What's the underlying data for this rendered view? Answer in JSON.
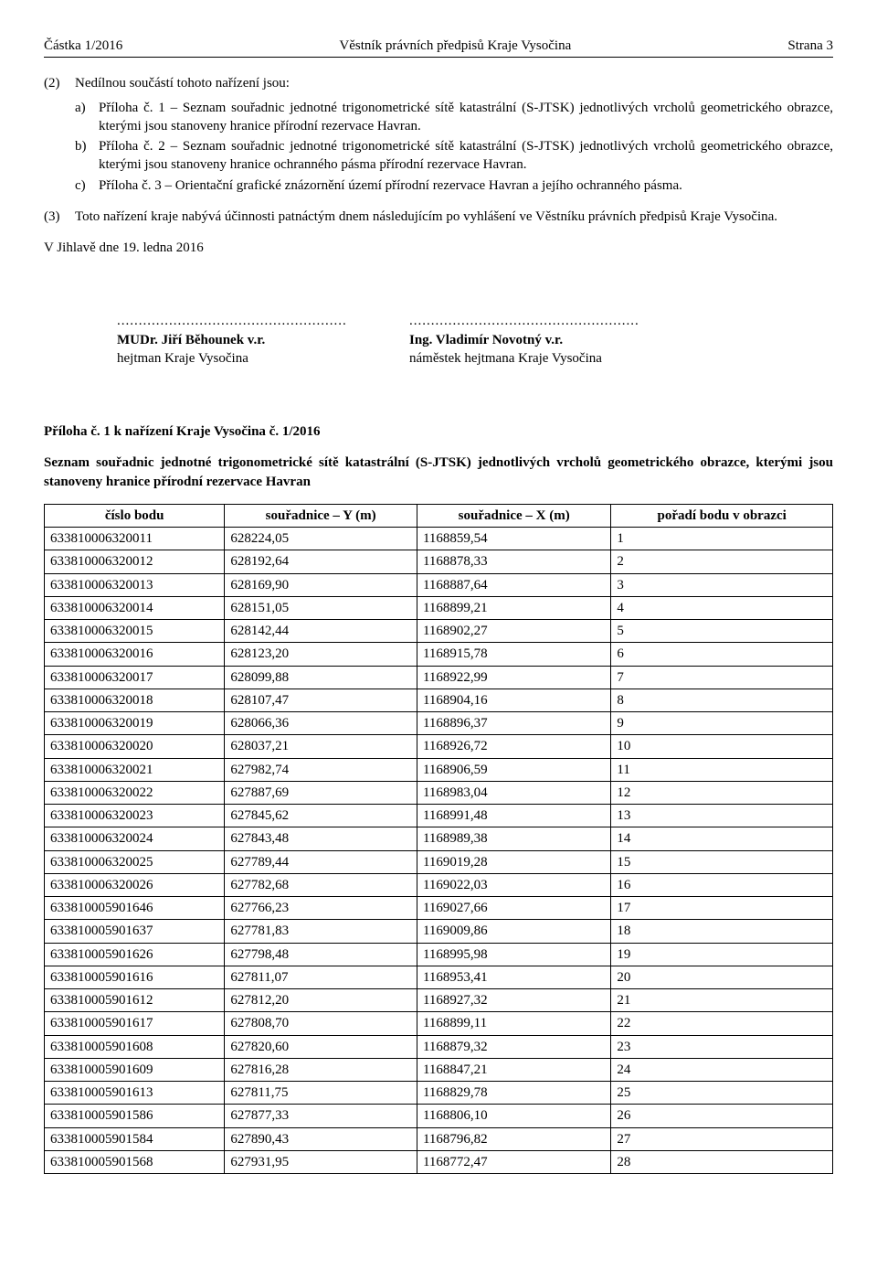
{
  "header": {
    "left": "Částka 1/2016",
    "center": "Věstník právních předpisů Kraje Vysočina",
    "right": "Strana 3"
  },
  "para2": {
    "num": "(2)",
    "intro": "Nedílnou součástí tohoto nařízení jsou:",
    "items": [
      {
        "letter": "a)",
        "text": "Příloha č. 1 – Seznam souřadnic jednotné trigonometrické sítě katastrální (S-JTSK) jednotlivých vrcholů geometrického obrazce, kterými jsou stanoveny hranice přírodní rezervace Havran."
      },
      {
        "letter": "b)",
        "text": "Příloha č. 2 – Seznam souřadnic jednotné trigonometrické sítě katastrální (S-JTSK) jednotlivých vrcholů geometrického obrazce, kterými jsou stanoveny hranice ochranného pásma přírodní rezervace Havran."
      },
      {
        "letter": "c)",
        "text": "Příloha č. 3 – Orientační grafické znázornění území přírodní rezervace Havran a jejího ochranného pásma."
      }
    ]
  },
  "para3": {
    "num": "(3)",
    "text": "Toto nařízení kraje nabývá účinnosti patnáctým dnem následujícím po vyhlášení ve Věstníku právních předpisů Kraje Vysočina."
  },
  "date_line": "V Jihlavě dne 19. ledna 2016",
  "sign": {
    "dots": ".....................................................",
    "left": {
      "name": "MUDr. Jiří Běhounek v.r.",
      "role": "hejtman Kraje Vysočina"
    },
    "right": {
      "name": "Ing. Vladimír Novotný v.r.",
      "role": "náměstek hejtmana Kraje Vysočina"
    }
  },
  "attachment": {
    "title": "Příloha č. 1 k nařízení Kraje Vysočina č. 1/2016",
    "subtitle": "Seznam souřadnic jednotné trigonometrické sítě katastrální (S-JTSK) jednotlivých vrcholů geometrického obrazce, kterými jsou stanoveny hranice přírodní rezervace Havran"
  },
  "table": {
    "headers": [
      "číslo bodu",
      "souřadnice – Y (m)",
      "souřadnice – X (m)",
      "pořadí bodu v obrazci"
    ],
    "rows": [
      [
        "633810006320011",
        "628224,05",
        "1168859,54",
        "1"
      ],
      [
        "633810006320012",
        "628192,64",
        "1168878,33",
        "2"
      ],
      [
        "633810006320013",
        "628169,90",
        "1168887,64",
        "3"
      ],
      [
        "633810006320014",
        "628151,05",
        "1168899,21",
        "4"
      ],
      [
        "633810006320015",
        "628142,44",
        "1168902,27",
        "5"
      ],
      [
        "633810006320016",
        "628123,20",
        "1168915,78",
        "6"
      ],
      [
        "633810006320017",
        "628099,88",
        "1168922,99",
        "7"
      ],
      [
        "633810006320018",
        "628107,47",
        "1168904,16",
        "8"
      ],
      [
        "633810006320019",
        "628066,36",
        "1168896,37",
        "9"
      ],
      [
        "633810006320020",
        "628037,21",
        "1168926,72",
        "10"
      ],
      [
        "633810006320021",
        "627982,74",
        "1168906,59",
        "11"
      ],
      [
        "633810006320022",
        "627887,69",
        "1168983,04",
        "12"
      ],
      [
        "633810006320023",
        "627845,62",
        "1168991,48",
        "13"
      ],
      [
        "633810006320024",
        "627843,48",
        "1168989,38",
        "14"
      ],
      [
        "633810006320025",
        "627789,44",
        "1169019,28",
        "15"
      ],
      [
        "633810006320026",
        "627782,68",
        "1169022,03",
        "16"
      ],
      [
        "633810005901646",
        "627766,23",
        "1169027,66",
        "17"
      ],
      [
        "633810005901637",
        "627781,83",
        "1169009,86",
        "18"
      ],
      [
        "633810005901626",
        "627798,48",
        "1168995,98",
        "19"
      ],
      [
        "633810005901616",
        "627811,07",
        "1168953,41",
        "20"
      ],
      [
        "633810005901612",
        "627812,20",
        "1168927,32",
        "21"
      ],
      [
        "633810005901617",
        "627808,70",
        "1168899,11",
        "22"
      ],
      [
        "633810005901608",
        "627820,60",
        "1168879,32",
        "23"
      ],
      [
        "633810005901609",
        "627816,28",
        "1168847,21",
        "24"
      ],
      [
        "633810005901613",
        "627811,75",
        "1168829,78",
        "25"
      ],
      [
        "633810005901586",
        "627877,33",
        "1168806,10",
        "26"
      ],
      [
        "633810005901584",
        "627890,43",
        "1168796,82",
        "27"
      ],
      [
        "633810005901568",
        "627931,95",
        "1168772,47",
        "28"
      ]
    ]
  }
}
